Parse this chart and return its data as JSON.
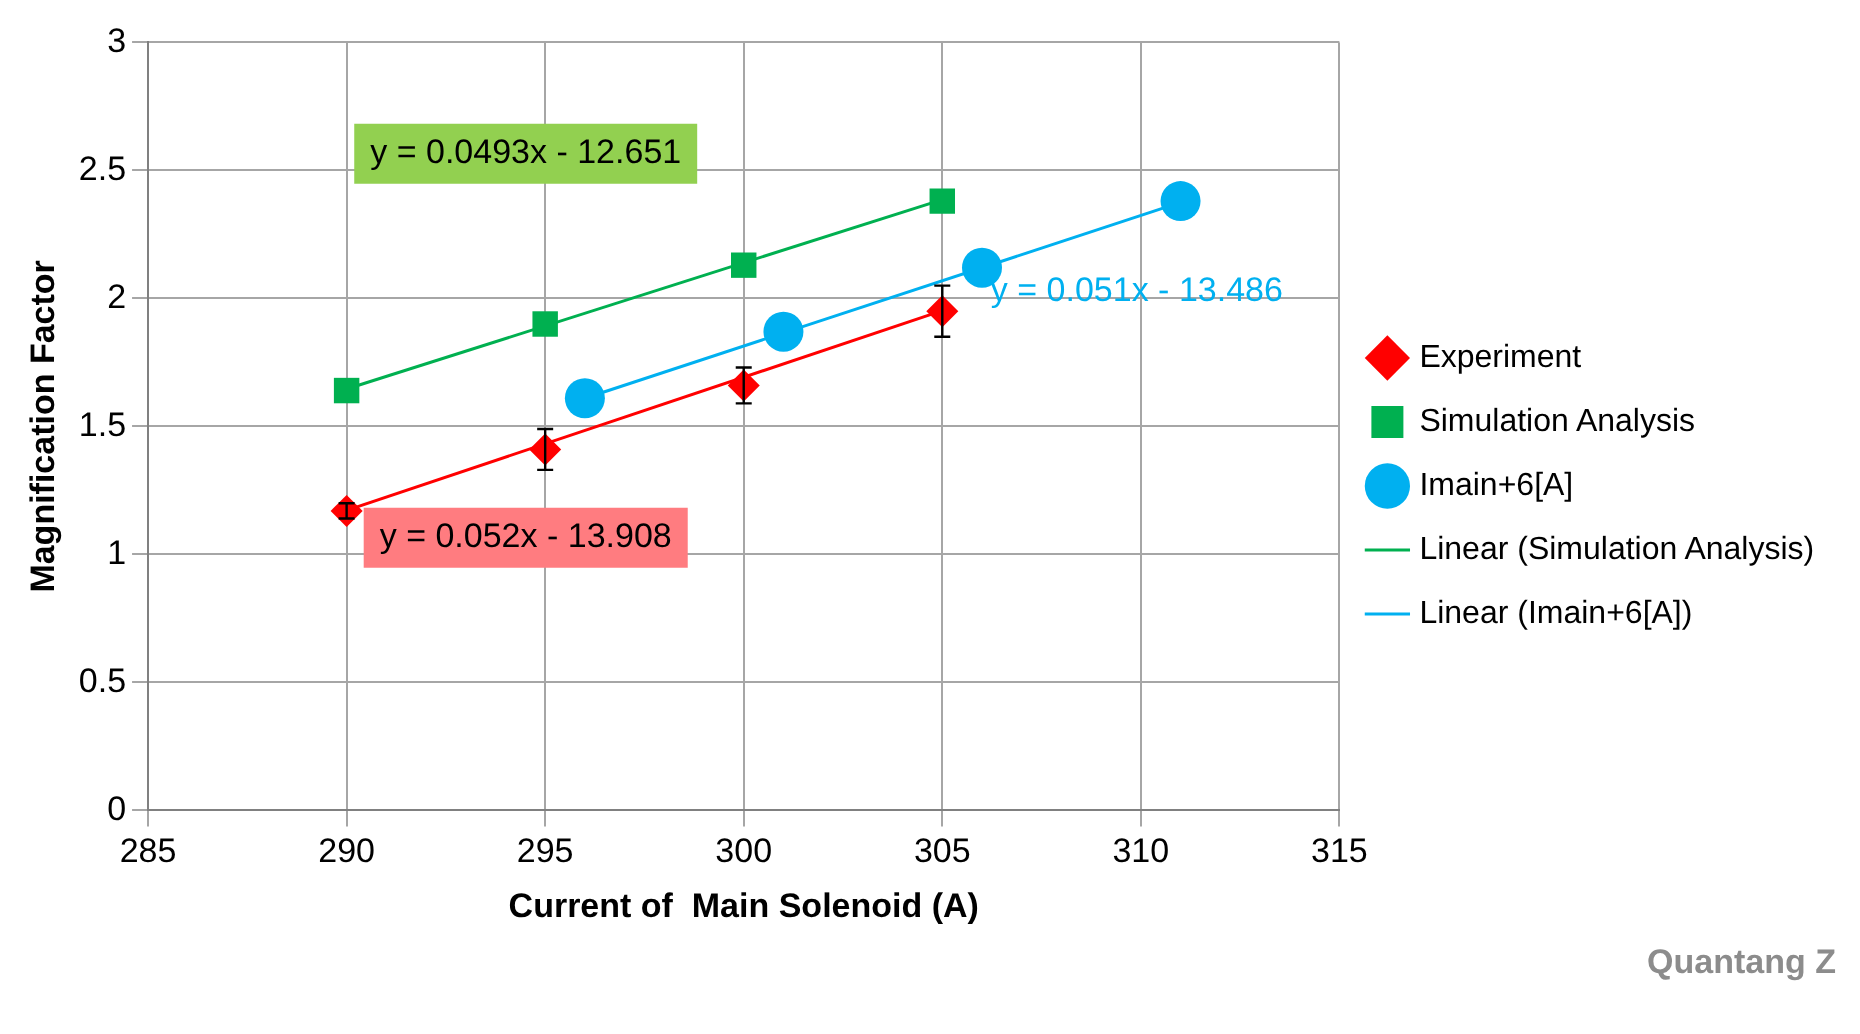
{
  "chart_data": {
    "type": "scatter",
    "xlabel": "Current of  Main Solenoid (A)",
    "ylabel": "Magnification Factor",
    "xlim": [
      285,
      315
    ],
    "xticks": [
      285,
      290,
      295,
      300,
      305,
      310,
      315
    ],
    "ylim": [
      0,
      3
    ],
    "yticks": [
      0,
      0.5,
      1,
      1.5,
      2,
      2.5,
      3
    ],
    "grid": true,
    "legend": "right",
    "series": [
      {
        "name": "Experiment",
        "marker": "diamond",
        "color": "#ff0000",
        "x": [
          290,
          295,
          300,
          305
        ],
        "values": [
          1.17,
          1.41,
          1.66,
          1.95
        ],
        "errors": [
          0.03,
          0.08,
          0.07,
          0.1
        ]
      },
      {
        "name": "Simulation Analysis",
        "marker": "square",
        "color": "#00b050",
        "x": [
          290,
          295,
          300,
          305
        ],
        "values": [
          1.64,
          1.9,
          2.13,
          2.38
        ]
      },
      {
        "name": "Imain+6[A]",
        "marker": "circle",
        "color": "#00b0f0",
        "x": [
          296,
          301,
          306,
          311
        ],
        "values": [
          1.61,
          1.87,
          2.12,
          2.38
        ]
      },
      {
        "name": "Linear (Simulation Analysis)",
        "type": "line",
        "marker": "none",
        "color": "#00b050",
        "x": [
          290,
          305
        ],
        "values": [
          1.646,
          2.386
        ]
      },
      {
        "name": "Linear (Imain+6[A])",
        "type": "line",
        "marker": "none",
        "color": "#00b0f0",
        "x": [
          296,
          311
        ],
        "values": [
          1.61,
          2.375
        ]
      },
      {
        "type": "line",
        "color": "#ff0000",
        "x": [
          290,
          305
        ],
        "values": [
          1.172,
          1.952
        ]
      }
    ],
    "annotations": [
      "y = 0.0493x - 12.651",
      "y = 0.051x - 13.486",
      "y = 0.052x - 13.908",
      "Quantang Z"
    ]
  }
}
